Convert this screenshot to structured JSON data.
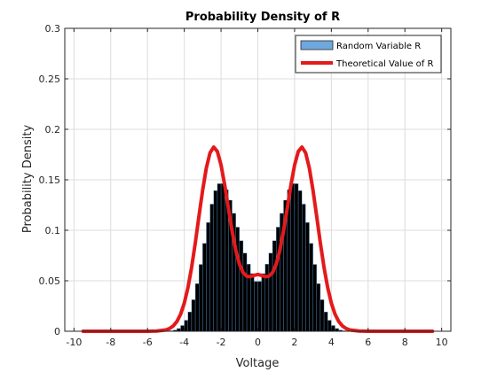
{
  "chart_data": {
    "type": "bar",
    "title": "Probability Density of R",
    "xlabel": "Voltage",
    "ylabel": "Probability Density",
    "xlim": [
      -10.5,
      10.5
    ],
    "ylim": [
      0,
      0.3
    ],
    "xticks": [
      -10,
      -8,
      -6,
      -4,
      -2,
      0,
      2,
      4,
      6,
      8,
      10
    ],
    "xtick_labels": [
      "-10",
      "-8",
      "-6",
      "-4",
      "-2",
      "0",
      "2",
      "4",
      "6",
      "8",
      "10"
    ],
    "yticks": [
      0,
      0.05,
      0.1,
      0.15,
      0.2,
      0.25,
      0.3
    ],
    "ytick_labels": [
      "0",
      "0.05",
      "0.1",
      "0.15",
      "0.2",
      "0.25",
      "0.3"
    ],
    "grid": true,
    "legend_position": "top-right",
    "series": [
      {
        "name": "Random Variable R",
        "kind": "histogram",
        "bin_width": 0.2,
        "x": [
          -4.9,
          -4.7,
          -4.5,
          -4.3,
          -4.1,
          -3.9,
          -3.7,
          -3.5,
          -3.3,
          -3.1,
          -2.9,
          -2.7,
          -2.5,
          -2.3,
          -2.1,
          -1.9,
          -1.7,
          -1.5,
          -1.3,
          -1.1,
          -0.9,
          -0.7,
          -0.5,
          -0.3,
          -0.1,
          0.1,
          0.3,
          0.5,
          0.7,
          0.9,
          1.1,
          1.3,
          1.5,
          1.7,
          1.9,
          2.1,
          2.3,
          2.5,
          2.7,
          2.9,
          3.1,
          3.3,
          3.5,
          3.7,
          3.9,
          4.1,
          4.3,
          4.5,
          4.7,
          4.9
        ],
        "values": [
          0.0002,
          0.0005,
          0.0012,
          0.0027,
          0.0057,
          0.0109,
          0.0191,
          0.0312,
          0.0471,
          0.0662,
          0.0871,
          0.1077,
          0.1259,
          0.1392,
          0.1461,
          0.1462,
          0.1402,
          0.1298,
          0.1168,
          0.1031,
          0.0897,
          0.0774,
          0.0664,
          0.0571,
          0.0494,
          0.0494,
          0.0571,
          0.0664,
          0.0774,
          0.0897,
          0.1031,
          0.1168,
          0.1298,
          0.1402,
          0.1462,
          0.1461,
          0.1392,
          0.1259,
          0.1077,
          0.0871,
          0.0662,
          0.0471,
          0.0312,
          0.0191,
          0.0109,
          0.0057,
          0.0027,
          0.0012,
          0.0005,
          0.0002
        ],
        "color": "#000000",
        "edge_color": "#5b9bd5",
        "legend_swatch_color": "#6fa8dc"
      },
      {
        "name": "Theoretical Value of R",
        "kind": "line",
        "x": [
          -9.5,
          -9.0,
          -8.5,
          -8.0,
          -7.5,
          -7.0,
          -6.5,
          -6.0,
          -5.5,
          -5.0,
          -4.8,
          -4.6,
          -4.4,
          -4.2,
          -4.0,
          -3.8,
          -3.6,
          -3.4,
          -3.2,
          -3.0,
          -2.8,
          -2.6,
          -2.4,
          -2.2,
          -2.0,
          -1.8,
          -1.6,
          -1.4,
          -1.2,
          -1.0,
          -0.8,
          -0.6,
          -0.4,
          -0.2,
          0.0,
          0.2,
          0.4,
          0.6,
          0.8,
          1.0,
          1.2,
          1.4,
          1.6,
          1.8,
          2.0,
          2.2,
          2.4,
          2.6,
          2.8,
          3.0,
          3.2,
          3.4,
          3.6,
          3.8,
          4.0,
          4.2,
          4.4,
          4.6,
          4.8,
          5.0,
          5.5,
          6.0,
          6.5,
          7.0,
          7.5,
          8.0,
          8.5,
          9.0,
          9.5
        ],
        "values": [
          0,
          0,
          0,
          0,
          0,
          0,
          0,
          0,
          0.0002,
          0.0013,
          0.0027,
          0.0053,
          0.0097,
          0.0169,
          0.0278,
          0.0433,
          0.0634,
          0.0876,
          0.1141,
          0.1399,
          0.1618,
          0.1767,
          0.1824,
          0.178,
          0.1646,
          0.1447,
          0.1218,
          0.0994,
          0.0803,
          0.0664,
          0.0581,
          0.0545,
          0.0541,
          0.0553,
          0.0563,
          0.0553,
          0.0541,
          0.0545,
          0.0581,
          0.0664,
          0.0803,
          0.0994,
          0.1218,
          0.1447,
          0.1646,
          0.178,
          0.1824,
          0.1767,
          0.1618,
          0.1399,
          0.1141,
          0.0876,
          0.0634,
          0.0433,
          0.0278,
          0.0169,
          0.0097,
          0.0053,
          0.0027,
          0.0013,
          0.0002,
          0,
          0,
          0,
          0,
          0,
          0,
          0,
          0
        ],
        "color": "#e31a1c"
      }
    ]
  }
}
